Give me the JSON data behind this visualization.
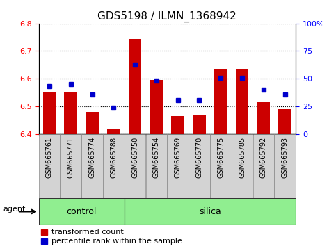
{
  "title": "GDS5198 / ILMN_1368942",
  "samples": [
    "GSM665761",
    "GSM665771",
    "GSM665774",
    "GSM665788",
    "GSM665750",
    "GSM665754",
    "GSM665769",
    "GSM665770",
    "GSM665775",
    "GSM665785",
    "GSM665792",
    "GSM665793"
  ],
  "red_values": [
    6.55,
    6.55,
    6.48,
    6.42,
    6.745,
    6.595,
    6.465,
    6.47,
    6.635,
    6.635,
    6.515,
    6.49
  ],
  "blue_values_pct": [
    43,
    45,
    36,
    24,
    63,
    48,
    31,
    31,
    51,
    51,
    40,
    36
  ],
  "ylim_left": [
    6.4,
    6.8
  ],
  "ylim_right": [
    0,
    100
  ],
  "yticks_left": [
    6.4,
    6.5,
    6.6,
    6.7,
    6.8
  ],
  "yticks_right": [
    0,
    25,
    50,
    75,
    100
  ],
  "bar_color": "#cc0000",
  "dot_color": "#0000cc",
  "bar_bottom": 6.4,
  "n_control": 4,
  "n_silica": 8,
  "green_color": "#90ee90",
  "agent_label": "agent",
  "control_label": "control",
  "silica_label": "silica",
  "legend_red": "transformed count",
  "legend_blue": "percentile rank within the sample",
  "title_fontsize": 11,
  "tick_fontsize": 8,
  "label_fontsize": 7,
  "legend_fontsize": 8
}
